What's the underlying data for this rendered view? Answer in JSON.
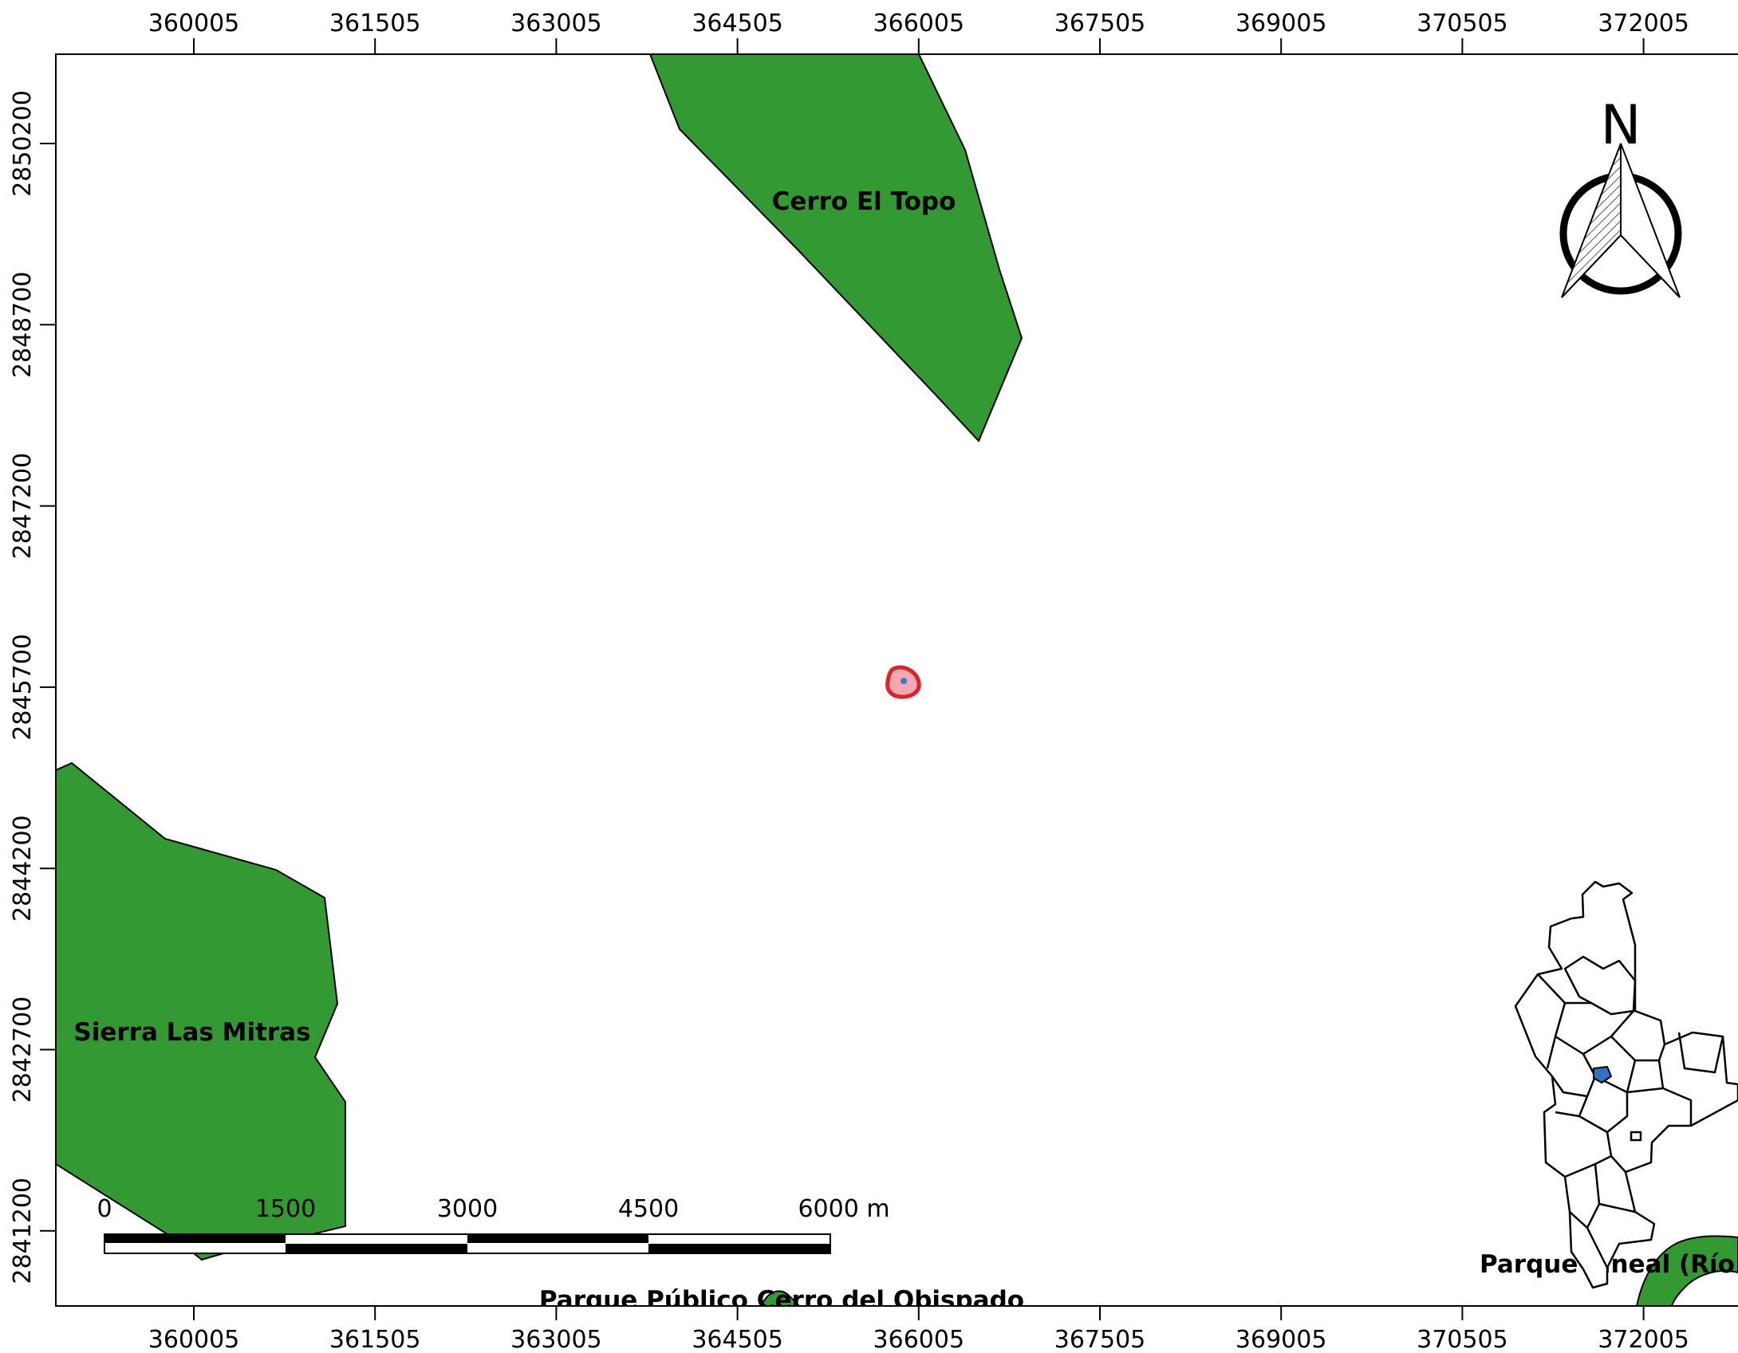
{
  "map": {
    "x_ticks": [
      "360005",
      "361505",
      "363005",
      "364505",
      "366005",
      "367505",
      "369005",
      "370505",
      "372005"
    ],
    "y_ticks": [
      "2850200",
      "2848700",
      "2847200",
      "2845700",
      "2844200",
      "2842700",
      "2841200"
    ],
    "features": {
      "cerro_el_topo": "Cerro El Topo",
      "sierra_las_mitras": "Sierra Las Mitras",
      "parque_obispado": "Parque Público Cerro del Obispado",
      "parque_rio_santa_catarina": "Parque Lineal (Río Santa Catarina)"
    },
    "scale_bar": {
      "labels": [
        "0",
        "1500",
        "3000",
        "4500",
        "6000 m"
      ]
    },
    "north_arrow": {
      "label": "N"
    },
    "colors": {
      "green_area": "#339933",
      "site_outline": "#e0202a",
      "site_fill": "#f2a8b0",
      "site_point": "#3a78c8",
      "inset_highlight": "#2f73c4"
    }
  }
}
